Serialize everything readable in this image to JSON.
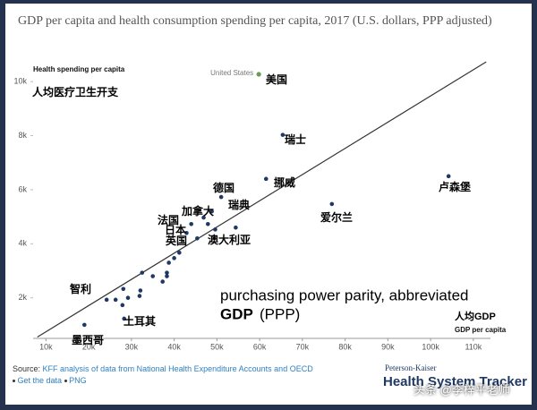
{
  "chart_data": {
    "type": "scatter",
    "title": "GDP per capita and health consumption spending per capita, 2017 (U.S. dollars, PPP adjusted)",
    "y_label": "Health spending per capita",
    "x_label": "GDP per capita",
    "xlim": [
      7000,
      114000
    ],
    "ylim": [
      500,
      10800
    ],
    "xticks": [
      {
        "value": 10000,
        "label": "10k"
      },
      {
        "value": 20000,
        "label": "20k"
      },
      {
        "value": 30000,
        "label": "30k"
      },
      {
        "value": 40000,
        "label": "40k"
      },
      {
        "value": 50000,
        "label": "50k"
      },
      {
        "value": 60000,
        "label": "60k"
      },
      {
        "value": 70000,
        "label": "70k"
      },
      {
        "value": 80000,
        "label": "80k"
      },
      {
        "value": 90000,
        "label": "90k"
      },
      {
        "value": 100000,
        "label": "100k"
      },
      {
        "value": 110000,
        "label": "110k"
      }
    ],
    "yticks": [
      {
        "value": 2000,
        "label": "2k"
      },
      {
        "value": 4000,
        "label": "4k"
      },
      {
        "value": 6000,
        "label": "6k"
      },
      {
        "value": 8000,
        "label": "8k"
      },
      {
        "value": 10000,
        "label": "10k"
      }
    ],
    "grid": false,
    "color": "#1f3864",
    "highlight_color": "#6a9a5a",
    "x": [
      59800,
      65400,
      61500,
      104200,
      76900,
      51000,
      48800,
      46900,
      44000,
      47900,
      42900,
      45400,
      49600,
      54400,
      41200,
      40000,
      38750,
      38300,
      38300,
      35000,
      32500,
      37300,
      32100,
      31900,
      29200,
      28100,
      27900,
      26300,
      28300,
      24200,
      19000
    ],
    "y": [
      10270,
      8030,
      6400,
      6500,
      5470,
      5730,
      5200,
      4970,
      4730,
      4730,
      4400,
      4200,
      4530,
      4600,
      3670,
      3470,
      3300,
      2930,
      2800,
      2800,
      2930,
      2600,
      2270,
      2070,
      2000,
      2330,
      1730,
      1930,
      1230,
      1930,
      1000
    ],
    "trendline": {
      "x": [
        8000,
        113000
      ],
      "y": [
        550,
        10730
      ],
      "color": "#333333"
    },
    "highlight_label": "United States",
    "annotations": [
      "美国",
      "瑞士",
      "挪威",
      "卢森堡",
      "爱尔兰",
      "德国",
      "加拿大",
      "瑞典",
      "法国",
      "日本",
      "英国",
      "澳大利亚",
      "智利",
      "土耳其",
      "墨西哥"
    ],
    "notes": {
      "y_note": "人均医疗卫生开支",
      "ppp": "purchasing power parity, abbreviated",
      "gdp": "GDP",
      "ppp_abbr": "(PPP)",
      "x_note": "人均GDP"
    }
  },
  "footer": {
    "source_label": "Source:",
    "source": "KFF analysis of data from National Health Expenditure Accounts and OECD",
    "links": [
      "Get the data",
      "PNG"
    ],
    "brand_top": "Peterson-Kaiser",
    "brand": "Health System Tracker",
    "watermark": "头条 @李梓平老师"
  }
}
